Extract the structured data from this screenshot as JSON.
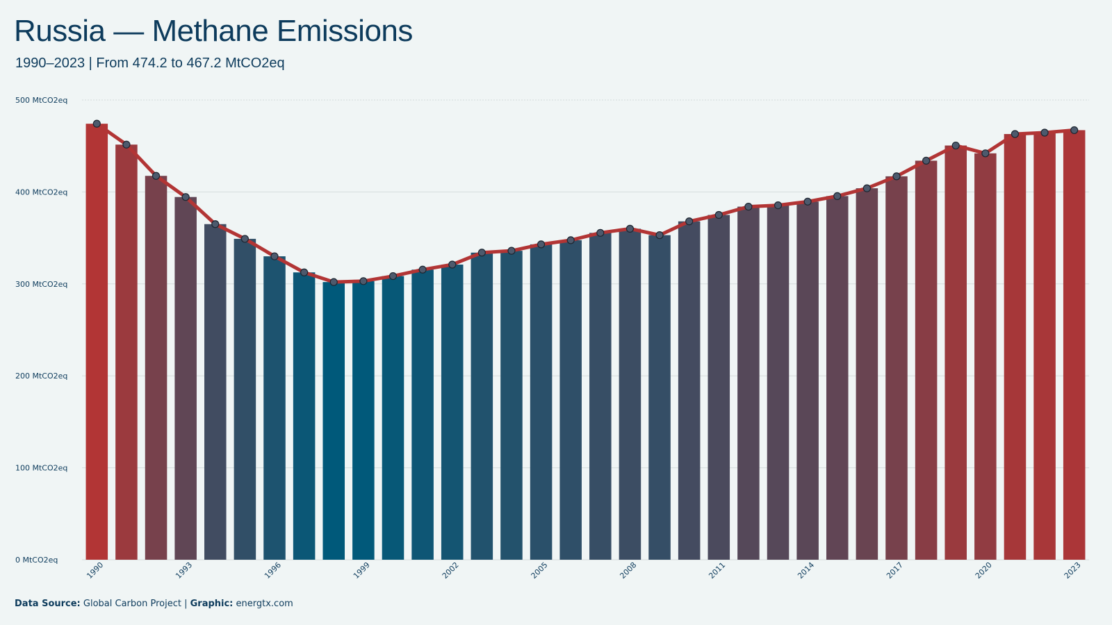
{
  "title": "Russia — Methane Emissions",
  "subtitle": "1990–2023 | From 474.2 to 467.2 MtCO2eq",
  "footer": {
    "source_label": "Data Source:",
    "source_value": "Global Carbon Project |",
    "graphic_label": "Graphic:",
    "graphic_value": "energtx.com"
  },
  "colors": {
    "background": "#f0f5f5",
    "high": "#b23535",
    "low": "#00597a",
    "line": "#b23535",
    "marker_fill": "#4d5a6d",
    "marker_stroke": "#1d2530",
    "grid": "#d5dcdc",
    "text": "#0d3b5c"
  },
  "chart_data": {
    "type": "bar",
    "overlay": "line-with-markers",
    "x": [
      1990,
      1991,
      1992,
      1993,
      1994,
      1995,
      1996,
      1997,
      1998,
      1999,
      2000,
      2001,
      2002,
      2003,
      2004,
      2005,
      2006,
      2007,
      2008,
      2009,
      2010,
      2011,
      2012,
      2013,
      2014,
      2015,
      2016,
      2017,
      2018,
      2019,
      2020,
      2021,
      2022,
      2023
    ],
    "values": [
      474.2,
      451.5,
      417.5,
      394.5,
      365.0,
      349.0,
      330.0,
      312.5,
      302.0,
      303.0,
      308.5,
      315.5,
      321.0,
      334.0,
      336.0,
      343.0,
      347.5,
      355.5,
      360.0,
      353.0,
      368.0,
      375.0,
      384.0,
      385.5,
      389.5,
      395.5,
      404.0,
      417.0,
      434.0,
      450.5,
      442.0,
      463.0,
      464.5,
      467.2
    ],
    "y_tick_labels": [
      "0 MtCO2eq",
      "100 MtCO2eq",
      "200 MtCO2eq",
      "300 MtCO2eq",
      "400 MtCO2eq",
      "500 MtCO2eq"
    ],
    "y_ticks": [
      0,
      100,
      200,
      300,
      400,
      500
    ],
    "x_tick_labels": [
      "1990",
      "1993",
      "1996",
      "1999",
      "2002",
      "2005",
      "2008",
      "2011",
      "2014",
      "2017",
      "2020",
      "2023"
    ],
    "ylim": [
      0,
      500
    ],
    "grid": "horizontal",
    "color_scale": "value: low = blue, high = red"
  }
}
